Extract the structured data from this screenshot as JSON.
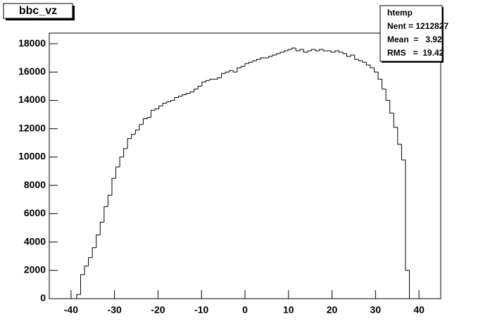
{
  "chart_data": {
    "type": "histogram",
    "title": "bbc_vz",
    "stats": {
      "name": "htemp",
      "entries": "Nent = 1212827",
      "mean": "Mean  =   3.92",
      "rms": "RMS   =  19.42"
    },
    "bins": [
      -45,
      -44.1,
      -43.2,
      -42.3,
      -41.4,
      -40.5,
      -39.6,
      -38.7,
      -37.8,
      -36.9,
      -36,
      -35.1,
      -34.2,
      -33.3,
      -32.4,
      -31.5,
      -30.6,
      -29.7,
      -28.8,
      -27.9,
      -27,
      -26.1,
      -25.2,
      -24.3,
      -23.4,
      -22.5,
      -21.6,
      -20.7,
      -19.8,
      -18.9,
      -18,
      -17.1,
      -16.2,
      -15.3,
      -14.4,
      -13.5,
      -12.6,
      -11.7,
      -10.8,
      -9.9,
      -9,
      -8.1,
      -7.2,
      -6.3,
      -5.4,
      -4.5,
      -3.6,
      -2.7,
      -1.8,
      -0.9,
      0,
      0.9,
      1.8,
      2.7,
      3.6,
      4.5,
      5.4,
      6.3,
      7.2,
      8.1,
      9,
      9.9,
      10.8,
      11.7,
      12.6,
      13.5,
      14.4,
      15.3,
      16.2,
      17.1,
      18,
      18.9,
      19.8,
      20.7,
      21.6,
      22.5,
      23.4,
      24.3,
      25.2,
      26.1,
      27,
      27.9,
      28.8,
      29.7,
      30.6,
      31.5,
      32.4,
      33.3,
      34.2,
      35.1,
      36,
      36.9,
      37.8,
      38.7,
      39.6,
      40.5,
      41.4,
      42.3,
      43.2,
      44.1,
      45
    ],
    "values": [
      0,
      0,
      0,
      0,
      0,
      0,
      0,
      300,
      1700,
      2300,
      2900,
      3600,
      4500,
      5400,
      6500,
      7300,
      8500,
      9300,
      10000,
      10600,
      11300,
      11600,
      11900,
      12300,
      12700,
      12800,
      13300,
      13400,
      13600,
      13800,
      13900,
      14000,
      14200,
      14300,
      14400,
      14500,
      14600,
      14800,
      15000,
      15300,
      15400,
      15500,
      15500,
      15600,
      15900,
      16000,
      16100,
      16000,
      16300,
      16400,
      16600,
      16700,
      16800,
      16900,
      17000,
      17000,
      17100,
      17200,
      17300,
      17400,
      17500,
      17600,
      17700,
      17500,
      17600,
      17400,
      17500,
      17600,
      17500,
      17600,
      17500,
      17500,
      17400,
      17500,
      17400,
      17300,
      17100,
      17200,
      16900,
      16800,
      16700,
      16500,
      16300,
      16000,
      15500,
      14800,
      14000,
      13100,
      12100,
      10900,
      9800,
      2000,
      0,
      0,
      0,
      0,
      0,
      0,
      0,
      0
    ],
    "color": "#000000",
    "xlim": [
      -45,
      45
    ],
    "ylim": [
      0,
      18750
    ],
    "xticks": [
      -40,
      -30,
      -20,
      -10,
      0,
      10,
      20,
      30,
      40
    ],
    "yticks": [
      0,
      2000,
      4000,
      6000,
      8000,
      10000,
      12000,
      14000,
      16000,
      18000
    ]
  }
}
